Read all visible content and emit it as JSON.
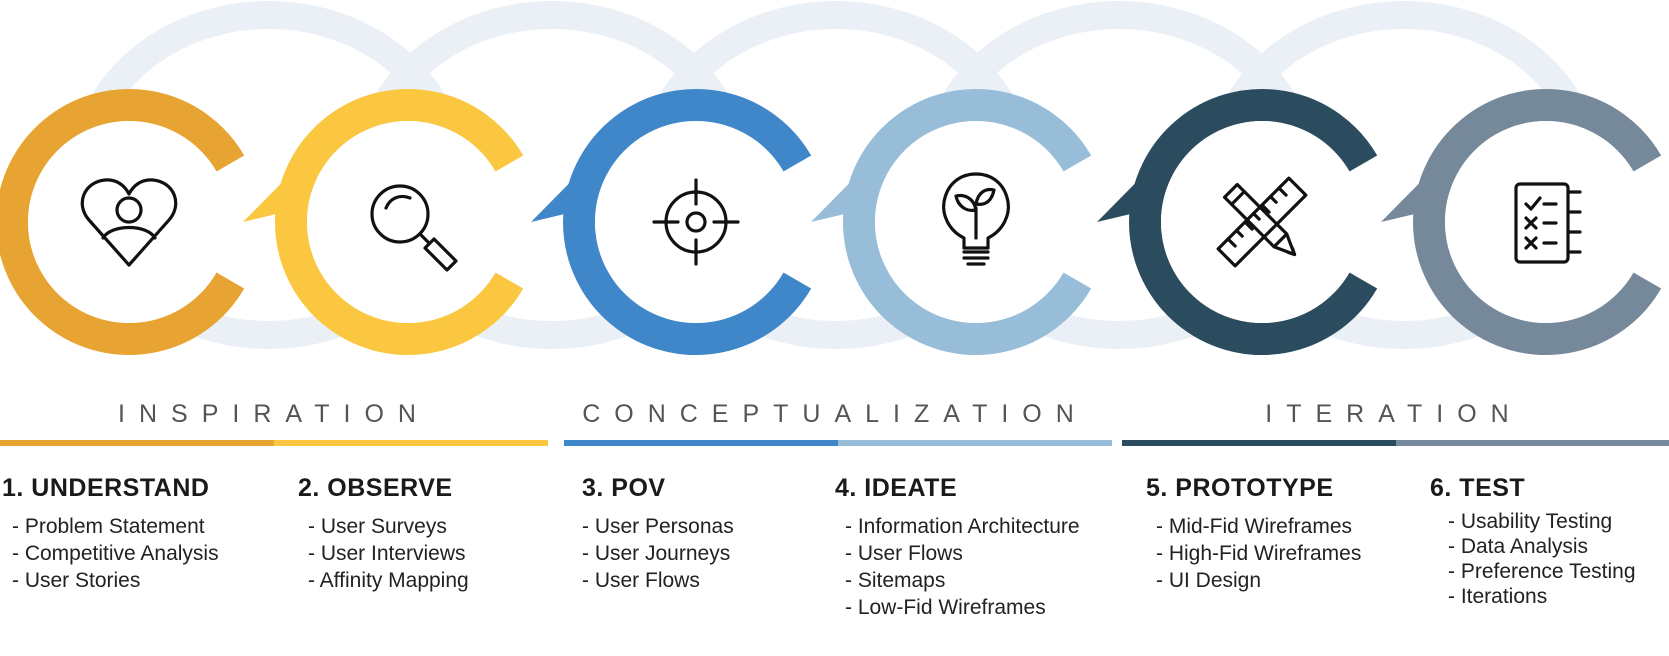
{
  "colors": {
    "understand": "#E8A432",
    "observe": "#FBC740",
    "pov": "#3F87C9",
    "ideate": "#97BDD9",
    "prototype": "#2B4C5F",
    "test": "#76899B",
    "loop": "#EAF0F6"
  },
  "phases": [
    {
      "label": "INSPIRATION"
    },
    {
      "label": "CONCEPTUALIZATION"
    },
    {
      "label": "ITERATION"
    }
  ],
  "steps": [
    {
      "title": "1. UNDERSTAND",
      "icon": "heart-user-icon",
      "items": [
        "Problem Statement",
        "Competitive Analysis",
        "User Stories"
      ]
    },
    {
      "title": "2. OBSERVE",
      "icon": "magnifier-icon",
      "items": [
        "User Surveys",
        "User Interviews",
        "Affinity Mapping"
      ]
    },
    {
      "title": "3. POV",
      "icon": "target-icon",
      "items": [
        "User Personas",
        "User Journeys",
        "User Flows"
      ]
    },
    {
      "title": "4. IDEATE",
      "icon": "lightbulb-icon",
      "items": [
        "Information Architecture",
        "User Flows",
        "Sitemaps",
        "Low-Fid Wireframes"
      ]
    },
    {
      "title": "5. PROTOTYPE",
      "icon": "ruler-pencil-icon",
      "items": [
        "Mid-Fid Wireframes",
        "High-Fid Wireframes",
        "UI Design"
      ]
    },
    {
      "title": "6. TEST",
      "icon": "checklist-icon",
      "items": [
        "Usability Testing",
        "Data Analysis",
        "Preference Testing",
        "Iterations"
      ]
    }
  ]
}
